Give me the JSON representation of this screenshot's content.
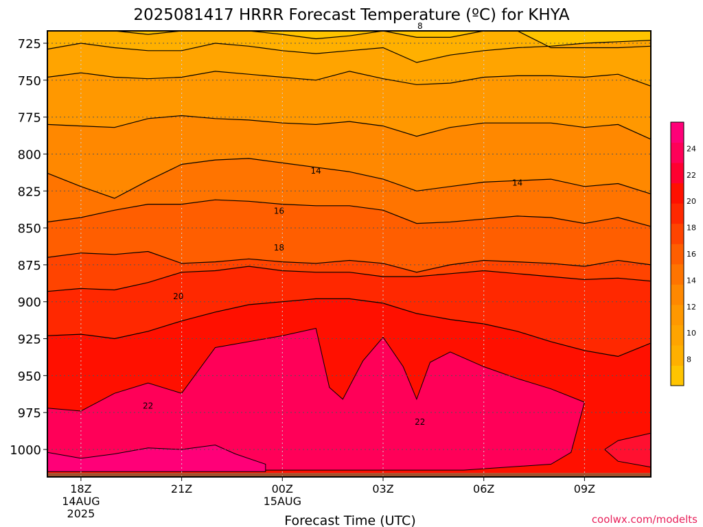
{
  "chart_data": {
    "type": "contour",
    "title": "2025081417 HRRR Forecast Temperature (ºC) for KHYA",
    "xlabel": "Forecast Time (UTC)",
    "ylabel": "",
    "credit": "coolwx.com/modelts",
    "x_ticks": [
      {
        "hour": 1,
        "label": "18Z",
        "sub1": "14AUG",
        "sub2": "2025"
      },
      {
        "hour": 4,
        "label": "21Z",
        "sub1": "",
        "sub2": ""
      },
      {
        "hour": 7,
        "label": "00Z",
        "sub1": "15AUG",
        "sub2": ""
      },
      {
        "hour": 10,
        "label": "03Z",
        "sub1": "",
        "sub2": ""
      },
      {
        "hour": 13,
        "label": "06Z",
        "sub1": "",
        "sub2": ""
      },
      {
        "hour": 16,
        "label": "09Z",
        "sub1": "",
        "sub2": ""
      }
    ],
    "xlim": [
      0,
      18
    ],
    "y_ticks": [
      725,
      750,
      775,
      800,
      825,
      850,
      875,
      900,
      925,
      950,
      975,
      1000
    ],
    "ylim": [
      710,
      1020
    ],
    "colorbar": {
      "ticks": [
        8,
        10,
        12,
        14,
        16,
        18,
        20,
        22,
        24
      ],
      "min": 6,
      "max": 26,
      "colors": [
        "#ffc400",
        "#ffb000",
        "#ffa400",
        "#ff9800",
        "#ff8800",
        "#ff7400",
        "#ff5e00",
        "#ff4400",
        "#ff2800",
        "#ff1000",
        "#ff0030",
        "#ff0058",
        "#ff0078"
      ]
    },
    "contour_labels": [
      {
        "text": "8",
        "hour": 11.1,
        "p": 713
      },
      {
        "text": "14",
        "hour": 8.0,
        "p": 811
      },
      {
        "text": "14",
        "hour": 14.0,
        "p": 819
      },
      {
        "text": "16",
        "hour": 6.9,
        "p": 838
      },
      {
        "text": "18",
        "hour": 6.9,
        "p": 863
      },
      {
        "text": "20",
        "hour": 3.9,
        "p": 896
      },
      {
        "text": "22",
        "hour": 3.0,
        "p": 970
      },
      {
        "text": "22",
        "hour": 11.1,
        "p": 981
      }
    ]
  }
}
